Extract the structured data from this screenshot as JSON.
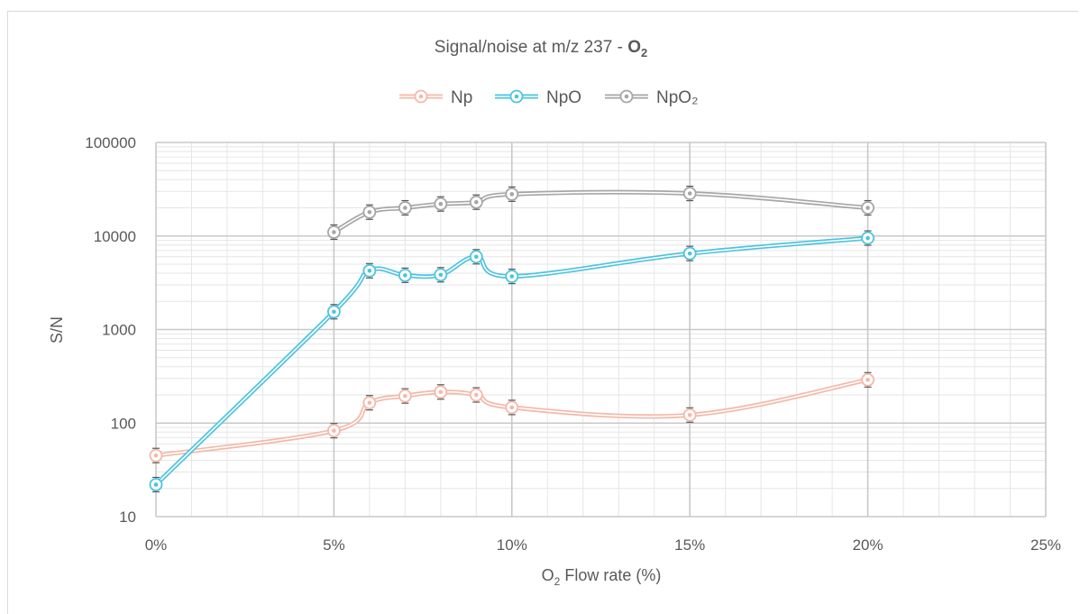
{
  "chart_data": {
    "type": "line",
    "title": "Signal/noise at m/z 237 - ",
    "title_suffix": "O",
    "title_suffix_sub": "2",
    "xlabel_prefix": "O",
    "xlabel_sub": "2",
    "xlabel_rest": " Flow rate (%)",
    "ylabel": "S/N",
    "x_scale": "linear",
    "y_scale": "log",
    "xlim": [
      0,
      25
    ],
    "ylim": [
      10,
      100000
    ],
    "x_ticks": [
      0,
      5,
      10,
      15,
      20,
      25
    ],
    "x_tick_labels": [
      "0%",
      "5%",
      "10%",
      "15%",
      "20%",
      "25%"
    ],
    "y_ticks": [
      10,
      100,
      1000,
      10000,
      100000
    ],
    "y_tick_labels": [
      "10",
      "100",
      "1000",
      "10000",
      "100000"
    ],
    "grid": true,
    "legend_position": "top",
    "series": [
      {
        "name": "Np",
        "color": "#f4b8a8",
        "x": [
          0,
          5,
          6,
          7,
          8,
          9,
          10,
          15,
          20
        ],
        "y": [
          45,
          83,
          165,
          195,
          215,
          200,
          147,
          122,
          290
        ]
      },
      {
        "name": "NpO",
        "color": "#4ec3e0",
        "x": [
          0,
          5,
          6,
          7,
          8,
          9,
          10,
          15,
          20
        ],
        "y": [
          22,
          1550,
          4250,
          3800,
          3850,
          6000,
          3700,
          6500,
          9500
        ]
      },
      {
        "name": "NpO₂",
        "color": "#a6a6a6",
        "x": [
          5,
          6,
          7,
          8,
          9,
          10,
          15,
          20
        ],
        "y": [
          11000,
          18000,
          20000,
          22000,
          23000,
          28000,
          28500,
          20000
        ]
      }
    ]
  }
}
